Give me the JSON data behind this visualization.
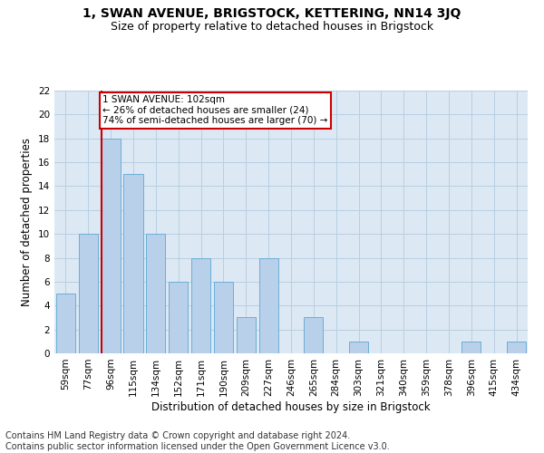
{
  "title": "1, SWAN AVENUE, BRIGSTOCK, KETTERING, NN14 3JQ",
  "subtitle": "Size of property relative to detached houses in Brigstock",
  "xlabel": "Distribution of detached houses by size in Brigstock",
  "ylabel": "Number of detached properties",
  "footer_line1": "Contains HM Land Registry data © Crown copyright and database right 2024.",
  "footer_line2": "Contains public sector information licensed under the Open Government Licence v3.0.",
  "categories": [
    "59sqm",
    "77sqm",
    "96sqm",
    "115sqm",
    "134sqm",
    "152sqm",
    "171sqm",
    "190sqm",
    "209sqm",
    "227sqm",
    "246sqm",
    "265sqm",
    "284sqm",
    "303sqm",
    "321sqm",
    "340sqm",
    "359sqm",
    "378sqm",
    "396sqm",
    "415sqm",
    "434sqm"
  ],
  "values": [
    5,
    10,
    18,
    15,
    10,
    6,
    8,
    6,
    3,
    8,
    0,
    3,
    0,
    1,
    0,
    0,
    0,
    0,
    1,
    0,
    1
  ],
  "bar_color": "#b8d0ea",
  "bar_edge_color": "#6baed6",
  "vline_x": 2,
  "vline_color": "#cc0000",
  "annotation_text": "1 SWAN AVENUE: 102sqm\n← 26% of detached houses are smaller (24)\n74% of semi-detached houses are larger (70) →",
  "annotation_box_color": "#ffffff",
  "annotation_box_edge_color": "#cc0000",
  "ylim": [
    0,
    22
  ],
  "yticks": [
    0,
    2,
    4,
    6,
    8,
    10,
    12,
    14,
    16,
    18,
    20,
    22
  ],
  "background_color": "#ffffff",
  "plot_bg_color": "#dce9f5",
  "grid_color": "#b8cfe0",
  "title_fontsize": 10,
  "subtitle_fontsize": 9,
  "axis_label_fontsize": 8.5,
  "tick_fontsize": 7.5,
  "footer_fontsize": 7
}
